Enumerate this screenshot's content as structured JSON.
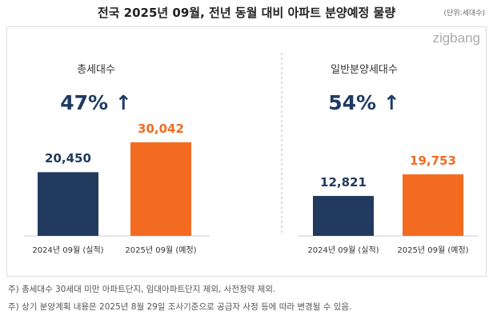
{
  "title": "전국 2025년 09월, 전년 동월 대비 아파트 분양예정 물량",
  "unit": "(단위:세대수)",
  "logo": "zigbang",
  "colors": {
    "prev": "#213a5e",
    "curr": "#f36b21"
  },
  "chart_data": [
    {
      "type": "bar",
      "title": "총세대수",
      "growth": "47% ↑",
      "categories": [
        "2024년 09월 (실적)",
        "2025년 09월 (예정)"
      ],
      "values": [
        20450,
        30042
      ],
      "value_labels": [
        "20,450",
        "30,042"
      ]
    },
    {
      "type": "bar",
      "title": "일반분양세대수",
      "growth": "54% ↑",
      "categories": [
        "2024년 09월 (실적)",
        "2025년 09월 (예정)"
      ],
      "values": [
        12821,
        19753
      ],
      "value_labels": [
        "12,821",
        "19,753"
      ]
    }
  ],
  "notes": [
    "주) 총세대수 30세대 미만 아파트단지, 임대아파트단지 제외, 사전청약 제외.",
    "주) 상기 분양계획 내용은 2025년 8월 29일 조사기준으로 공급자 사정 등에 따라 변경될 수 있음."
  ]
}
